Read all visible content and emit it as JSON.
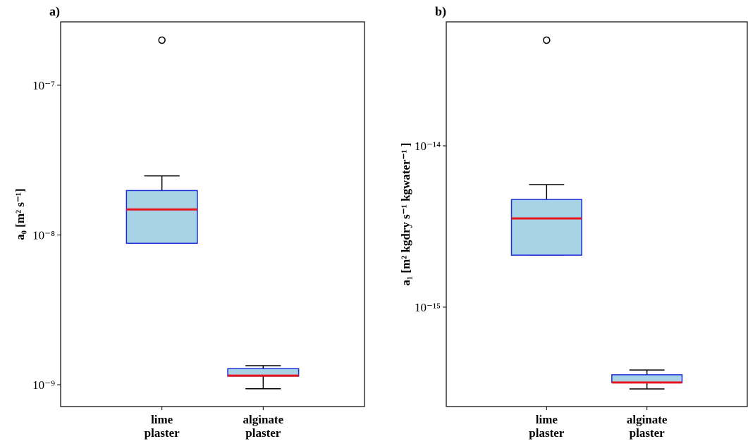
{
  "chart_data": [
    {
      "type": "box",
      "title": "a)",
      "y_label": "a₀ [m² s⁻¹]",
      "log_scale": true,
      "categories": [
        "lime plaster",
        "alginate plaster"
      ],
      "boxes": [
        {
          "whislo": 8.8e-09,
          "q1": 8.8e-09,
          "med": 1.48e-08,
          "q3": 1.98e-08,
          "whishi": 2.48e-08,
          "fliers": [
            2e-07
          ]
        },
        {
          "whislo": 9.4e-10,
          "q1": 1.14e-09,
          "med": 1.15e-09,
          "q3": 1.28e-09,
          "whishi": 1.34e-09,
          "fliers": []
        }
      ],
      "box_color": "#a8d3e6",
      "edge_color": "#1a2fd6",
      "median_color": "#e8141b",
      "ylim": [
        7.15e-10,
        2.65e-07
      ],
      "yticks": [
        {
          "value": 1e-09,
          "label": "10⁻⁹"
        },
        {
          "value": 1e-08,
          "label": "10⁻⁸"
        },
        {
          "value": 1e-07,
          "label": "10⁻⁷"
        }
      ]
    },
    {
      "type": "box",
      "title": "b)",
      "y_label": "a₁ [m² kgdry s⁻¹ kgwater⁻¹ ]",
      "log_scale": true,
      "categories": [
        "lime plaster",
        "alginate plaster"
      ],
      "boxes": [
        {
          "whislo": 2.1e-15,
          "q1": 2.1e-15,
          "med": 3.55e-15,
          "q3": 4.65e-15,
          "whishi": 5.75e-15,
          "fliers": [
            4.52e-14
          ]
        },
        {
          "whislo": 3.11e-16,
          "q1": 3.41e-16,
          "med": 3.41e-16,
          "q3": 3.81e-16,
          "whishi": 4.08e-16,
          "fliers": []
        }
      ],
      "box_color": "#a8d3e6",
      "edge_color": "#1a2fd6",
      "median_color": "#e8141b",
      "ylim": [
        2.42e-16,
        5.87e-14
      ],
      "yticks": [
        {
          "value": 1e-15,
          "label": "10⁻¹⁵"
        },
        {
          "value": 1e-14,
          "label": "10⁻¹⁴"
        }
      ]
    }
  ]
}
